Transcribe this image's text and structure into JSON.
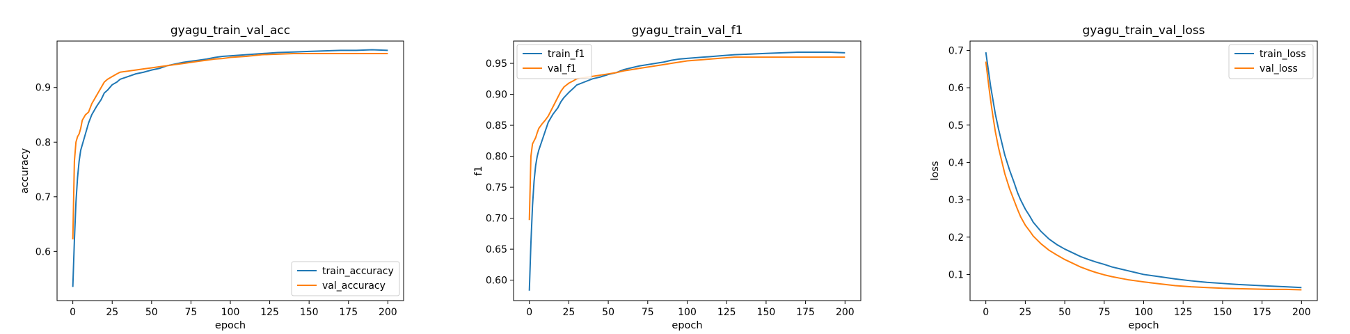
{
  "chart_data": [
    {
      "type": "line",
      "title": "gyagu_train_val_acc",
      "xlabel": "epoch",
      "ylabel": "accuracy",
      "xlim": [
        -10,
        210
      ],
      "ylim": [
        0.51,
        0.985
      ],
      "xticks": [
        0,
        25,
        50,
        75,
        100,
        125,
        150,
        175,
        200
      ],
      "yticks": [
        0.6,
        0.7,
        0.8,
        0.9
      ],
      "ytick_labels": [
        "0.6",
        "0.7",
        "0.8",
        "0.9"
      ],
      "grid": false,
      "legend_position": "lower-right",
      "x": [
        0,
        1,
        2,
        3,
        4,
        5,
        6,
        8,
        10,
        12,
        15,
        18,
        20,
        22,
        25,
        28,
        30,
        35,
        40,
        45,
        50,
        55,
        60,
        65,
        70,
        75,
        80,
        85,
        90,
        95,
        100,
        110,
        120,
        130,
        140,
        150,
        160,
        170,
        180,
        190,
        200
      ],
      "series": [
        {
          "name": "train_accuracy",
          "color": "#1f77b4",
          "values": [
            0.535,
            0.62,
            0.69,
            0.735,
            0.765,
            0.785,
            0.795,
            0.815,
            0.835,
            0.85,
            0.865,
            0.878,
            0.89,
            0.895,
            0.905,
            0.91,
            0.915,
            0.92,
            0.925,
            0.928,
            0.932,
            0.935,
            0.94,
            0.943,
            0.946,
            0.948,
            0.95,
            0.952,
            0.955,
            0.957,
            0.958,
            0.96,
            0.962,
            0.964,
            0.965,
            0.966,
            0.967,
            0.968,
            0.968,
            0.969,
            0.968
          ]
        },
        {
          "name": "val_accuracy",
          "color": "#ff7f0e",
          "values": [
            0.622,
            0.765,
            0.8,
            0.81,
            0.815,
            0.825,
            0.84,
            0.85,
            0.855,
            0.87,
            0.885,
            0.9,
            0.91,
            0.915,
            0.92,
            0.925,
            0.928,
            0.93,
            0.932,
            0.934,
            0.936,
            0.938,
            0.94,
            0.942,
            0.944,
            0.946,
            0.948,
            0.95,
            0.952,
            0.953,
            0.955,
            0.957,
            0.96,
            0.961,
            0.962,
            0.962,
            0.962,
            0.962,
            0.962,
            0.962,
            0.962
          ]
        }
      ]
    },
    {
      "type": "line",
      "title": "gyagu_train_val_f1",
      "xlabel": "epoch",
      "ylabel": "f1",
      "xlim": [
        -10,
        210
      ],
      "ylim": [
        0.567,
        0.986
      ],
      "xticks": [
        0,
        25,
        50,
        75,
        100,
        125,
        150,
        175,
        200
      ],
      "yticks": [
        0.6,
        0.65,
        0.7,
        0.75,
        0.8,
        0.85,
        0.9,
        0.95
      ],
      "ytick_labels": [
        "0.60",
        "0.65",
        "0.70",
        "0.75",
        "0.80",
        "0.85",
        "0.90",
        "0.95"
      ],
      "grid": false,
      "legend_position": "upper-left",
      "x": [
        0,
        1,
        2,
        3,
        4,
        5,
        6,
        8,
        10,
        12,
        15,
        18,
        20,
        22,
        25,
        28,
        30,
        35,
        40,
        45,
        50,
        55,
        60,
        65,
        70,
        75,
        80,
        85,
        90,
        95,
        100,
        110,
        120,
        130,
        140,
        150,
        160,
        170,
        180,
        190,
        200
      ],
      "series": [
        {
          "name": "train_f1",
          "color": "#1f77b4",
          "values": [
            0.583,
            0.66,
            0.72,
            0.76,
            0.785,
            0.8,
            0.81,
            0.825,
            0.84,
            0.855,
            0.868,
            0.878,
            0.888,
            0.895,
            0.903,
            0.91,
            0.915,
            0.92,
            0.925,
            0.928,
            0.932,
            0.935,
            0.94,
            0.943,
            0.946,
            0.948,
            0.95,
            0.952,
            0.955,
            0.957,
            0.958,
            0.96,
            0.962,
            0.964,
            0.965,
            0.966,
            0.967,
            0.968,
            0.968,
            0.968,
            0.967
          ]
        },
        {
          "name": "val_f1",
          "color": "#ff7f0e",
          "values": [
            0.697,
            0.8,
            0.82,
            0.825,
            0.83,
            0.838,
            0.845,
            0.852,
            0.858,
            0.865,
            0.88,
            0.895,
            0.905,
            0.912,
            0.918,
            0.922,
            0.925,
            0.927,
            0.929,
            0.931,
            0.933,
            0.935,
            0.938,
            0.94,
            0.942,
            0.944,
            0.946,
            0.948,
            0.95,
            0.952,
            0.954,
            0.956,
            0.958,
            0.96,
            0.96,
            0.96,
            0.96,
            0.96,
            0.96,
            0.96,
            0.96
          ]
        }
      ]
    },
    {
      "type": "line",
      "title": "gyagu_train_val_loss",
      "xlabel": "epoch",
      "ylabel": "loss",
      "xlim": [
        -10,
        210
      ],
      "ylim": [
        0.03,
        0.725
      ],
      "xticks": [
        0,
        25,
        50,
        75,
        100,
        125,
        150,
        175,
        200
      ],
      "yticks": [
        0.1,
        0.2,
        0.3,
        0.4,
        0.5,
        0.6,
        0.7
      ],
      "ytick_labels": [
        "0.1",
        "0.2",
        "0.3",
        "0.4",
        "0.5",
        "0.6",
        "0.7"
      ],
      "grid": false,
      "legend_position": "upper-right",
      "x": [
        0,
        1,
        2,
        3,
        4,
        5,
        6,
        8,
        10,
        12,
        15,
        18,
        20,
        22,
        25,
        28,
        30,
        35,
        40,
        45,
        50,
        55,
        60,
        65,
        70,
        75,
        80,
        85,
        90,
        95,
        100,
        110,
        120,
        130,
        140,
        150,
        160,
        170,
        180,
        190,
        200
      ],
      "series": [
        {
          "name": "train_loss",
          "color": "#1f77b4",
          "values": [
            0.695,
            0.665,
            0.635,
            0.605,
            0.58,
            0.555,
            0.53,
            0.49,
            0.455,
            0.42,
            0.38,
            0.345,
            0.32,
            0.3,
            0.275,
            0.255,
            0.24,
            0.215,
            0.195,
            0.18,
            0.168,
            0.158,
            0.148,
            0.14,
            0.133,
            0.127,
            0.12,
            0.115,
            0.11,
            0.105,
            0.1,
            0.094,
            0.088,
            0.083,
            0.079,
            0.076,
            0.073,
            0.071,
            0.069,
            0.067,
            0.065
          ]
        },
        {
          "name": "val_loss",
          "color": "#ff7f0e",
          "values": [
            0.67,
            0.635,
            0.6,
            0.568,
            0.538,
            0.51,
            0.483,
            0.44,
            0.405,
            0.37,
            0.33,
            0.297,
            0.275,
            0.255,
            0.232,
            0.215,
            0.203,
            0.182,
            0.165,
            0.152,
            0.14,
            0.13,
            0.12,
            0.112,
            0.105,
            0.099,
            0.094,
            0.09,
            0.086,
            0.083,
            0.08,
            0.075,
            0.07,
            0.067,
            0.065,
            0.063,
            0.062,
            0.061,
            0.06,
            0.06,
            0.059
          ]
        }
      ]
    }
  ]
}
